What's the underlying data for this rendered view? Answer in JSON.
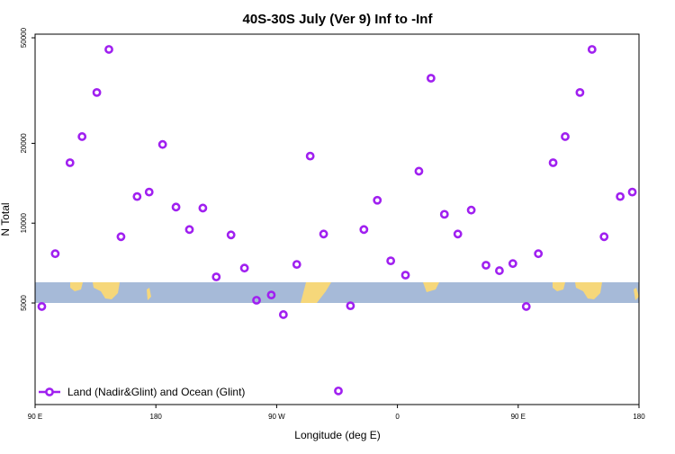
{
  "chart_data": {
    "type": "scatter",
    "title": "40S-30S July (Ver 9)   Inf to -Inf",
    "x_label": "Longitude (deg E)",
    "y_label": "N Total",
    "log_y": true,
    "series": [
      {
        "name": "Land (Nadir&Glint) and Ocean (Glint)",
        "color": "#a020f0",
        "x": [
          95,
          105,
          116,
          125,
          136,
          145,
          154,
          166,
          175,
          185,
          195,
          205,
          215,
          225,
          236,
          246,
          255,
          266,
          275,
          285,
          295,
          305,
          316,
          325,
          335,
          345,
          355,
          366,
          376,
          385,
          395,
          405,
          415,
          426,
          436,
          446,
          456,
          465,
          476,
          485,
          496,
          505,
          514,
          526,
          535
        ],
        "values": [
          4850,
          7670,
          16900,
          21200,
          31100,
          45200,
          8890,
          12600,
          13100,
          19800,
          11500,
          9460,
          11400,
          6270,
          9030,
          6770,
          5120,
          5360,
          4520,
          6990,
          17900,
          9100,
          2330,
          4880,
          9460,
          12200,
          7210,
          6370,
          15700,
          35200,
          10800,
          9100,
          11200,
          6940,
          6620,
          7040,
          4850,
          7670,
          16900,
          21200,
          31100,
          45200,
          8890,
          12600,
          13100
        ]
      }
    ],
    "xlim": [
      90,
      540
    ],
    "xticks": [
      {
        "value": 90,
        "label": "90 E"
      },
      180,
      {
        "value": 270,
        "label": "90 W"
      },
      {
        "value": 360,
        "label": "0"
      },
      {
        "value": 450,
        "label": "90 E"
      },
      {
        "value": 540,
        "label": "180"
      }
    ],
    "ylim": [
      2070,
      51600
    ],
    "yticks": [
      5000,
      10000,
      20000,
      50000
    ],
    "legend": "bottom-left"
  }
}
